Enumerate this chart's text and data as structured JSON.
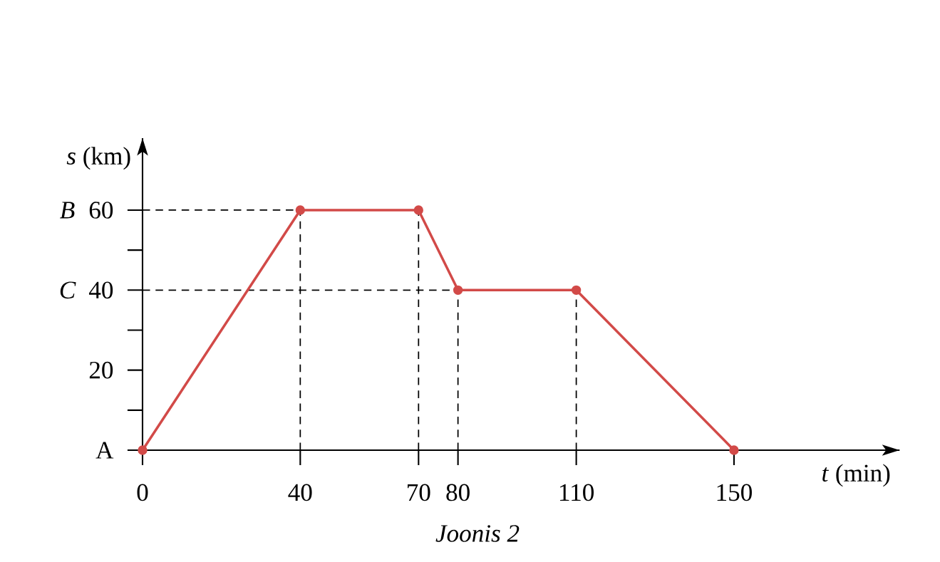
{
  "chart_data": {
    "type": "line",
    "xlabel": "*t* (min)",
    "ylabel": "*s* (km)",
    "x": [
      0,
      40,
      70,
      80,
      110,
      150
    ],
    "series": [
      {
        "color": "#d24a48",
        "values": [
          0,
          60,
          60,
          40,
          40,
          0
        ]
      }
    ],
    "xlim": [
      0,
      192
    ],
    "ylim": [
      0,
      78
    ],
    "xticks": [
      0,
      40,
      70,
      80,
      110,
      150
    ],
    "yticks": [
      {
        "value": 0,
        "label": "A"
      },
      20,
      40,
      60
    ],
    "ref_lines": [
      {
        "axis": "y",
        "value": 60,
        "label": "B",
        "line_style": "dashed"
      },
      {
        "axis": "y",
        "value": 40,
        "label": "C",
        "line_style": "dashed"
      },
      {
        "axis": "x",
        "value": 40,
        "line_style": "dashed"
      },
      {
        "axis": "x",
        "value": 70,
        "line_style": "dashed"
      },
      {
        "axis": "x",
        "value": 80,
        "line_style": "dashed"
      },
      {
        "axis": "x",
        "value": 110,
        "line_style": "dashed"
      }
    ],
    "marker": "circle",
    "line_style": "solid",
    "annotations": [
      "Joonis 2"
    ]
  }
}
